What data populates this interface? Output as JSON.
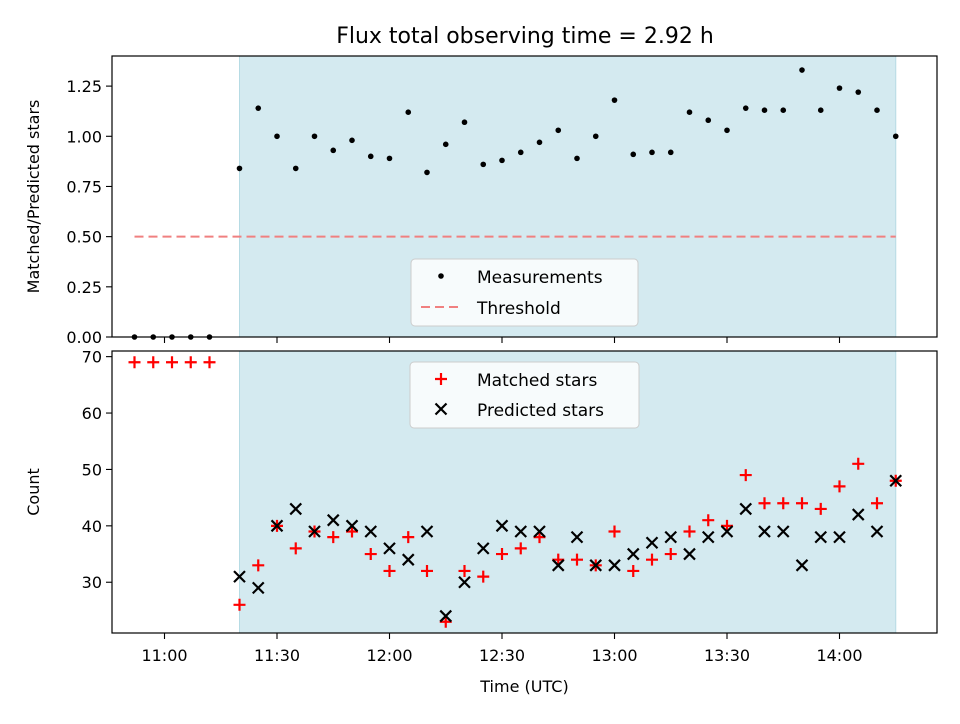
{
  "title": "Flux total observing time = 2.92 h",
  "colors": {
    "observing_band": "#d4eaf0",
    "measurement": "#000000",
    "threshold": "#f08080",
    "matched": "#ff0000",
    "predicted": "#000000"
  },
  "chart_data": [
    {
      "type": "scatter",
      "ylabel": "Matched/Predicted stars",
      "ylim": [
        0,
        1.4
      ],
      "yticks": [
        0.0,
        0.25,
        0.5,
        0.75,
        1.0,
        1.25
      ],
      "ytick_labels": [
        "0.00",
        "0.25",
        "0.50",
        "0.75",
        "1.00",
        "1.25"
      ],
      "observing_window": [
        "11:20",
        "14:15"
      ],
      "legend_position": "bottom-center",
      "series": [
        {
          "name": "Measurements",
          "x": [
            "10:52",
            "10:57",
            "11:02",
            "11:07",
            "11:12",
            "11:20",
            "11:25",
            "11:30",
            "11:35",
            "11:40",
            "11:45",
            "11:50",
            "11:55",
            "12:00",
            "12:05",
            "12:10",
            "12:15",
            "12:20",
            "12:25",
            "12:30",
            "12:35",
            "12:40",
            "12:45",
            "12:50",
            "12:55",
            "13:00",
            "13:05",
            "13:10",
            "13:15",
            "13:20",
            "13:25",
            "13:30",
            "13:35",
            "13:40",
            "13:45",
            "13:50",
            "13:55",
            "14:00",
            "14:05",
            "14:10",
            "14:15"
          ],
          "values": [
            0,
            0,
            0,
            0,
            0,
            0.84,
            1.14,
            1.0,
            0.84,
            1.0,
            0.93,
            0.98,
            0.9,
            0.89,
            1.12,
            0.82,
            0.96,
            1.07,
            0.86,
            0.88,
            0.92,
            0.97,
            1.03,
            0.89,
            1.0,
            1.18,
            0.91,
            0.92,
            0.92,
            1.12,
            1.08,
            1.03,
            1.14,
            1.13,
            1.13,
            1.33,
            1.13,
            1.24,
            1.22,
            1.13,
            1.0
          ]
        },
        {
          "name": "Threshold",
          "x": [
            "10:52",
            "14:15"
          ],
          "values": [
            0.5,
            0.5
          ]
        }
      ]
    },
    {
      "type": "scatter",
      "xlabel": "Time (UTC)",
      "ylabel": "Count",
      "ylim": [
        21,
        71
      ],
      "yticks": [
        30,
        40,
        50,
        60,
        70
      ],
      "ytick_labels": [
        "30",
        "40",
        "50",
        "60",
        "70"
      ],
      "xticks": [
        "11:00",
        "11:30",
        "12:00",
        "12:30",
        "13:00",
        "13:30",
        "14:00"
      ],
      "observing_window": [
        "11:20",
        "14:15"
      ],
      "legend_position": "top-center",
      "series": [
        {
          "name": "Matched stars",
          "x": [
            "10:52",
            "10:57",
            "11:02",
            "11:07",
            "11:12",
            "11:20",
            "11:25",
            "11:30",
            "11:35",
            "11:40",
            "11:45",
            "11:50",
            "11:55",
            "12:00",
            "12:05",
            "12:10",
            "12:15",
            "12:20",
            "12:25",
            "12:30",
            "12:35",
            "12:40",
            "12:45",
            "12:50",
            "12:55",
            "13:00",
            "13:05",
            "13:10",
            "13:15",
            "13:20",
            "13:25",
            "13:30",
            "13:35",
            "13:40",
            "13:45",
            "13:50",
            "13:55",
            "14:00",
            "14:05",
            "14:10",
            "14:15"
          ],
          "values": [
            69,
            69,
            69,
            69,
            69,
            26,
            33,
            40,
            36,
            39,
            38,
            39,
            35,
            32,
            38,
            32,
            23,
            32,
            31,
            35,
            36,
            38,
            34,
            34,
            33,
            39,
            32,
            34,
            35,
            39,
            41,
            40,
            49,
            44,
            44,
            44,
            43,
            47,
            51,
            44,
            48
          ]
        },
        {
          "name": "Predicted stars",
          "x": [
            "11:20",
            "11:25",
            "11:30",
            "11:35",
            "11:40",
            "11:45",
            "11:50",
            "11:55",
            "12:00",
            "12:05",
            "12:10",
            "12:15",
            "12:20",
            "12:25",
            "12:30",
            "12:35",
            "12:40",
            "12:45",
            "12:50",
            "12:55",
            "13:00",
            "13:05",
            "13:10",
            "13:15",
            "13:20",
            "13:25",
            "13:30",
            "13:35",
            "13:40",
            "13:45",
            "13:50",
            "13:55",
            "14:00",
            "14:05",
            "14:10",
            "14:15"
          ],
          "values": [
            31,
            29,
            40,
            43,
            39,
            41,
            40,
            39,
            36,
            34,
            39,
            24,
            30,
            36,
            40,
            39,
            39,
            33,
            38,
            33,
            33,
            35,
            37,
            38,
            35,
            38,
            39,
            43,
            39,
            39,
            33,
            38,
            38,
            42,
            39,
            48
          ]
        }
      ]
    }
  ]
}
